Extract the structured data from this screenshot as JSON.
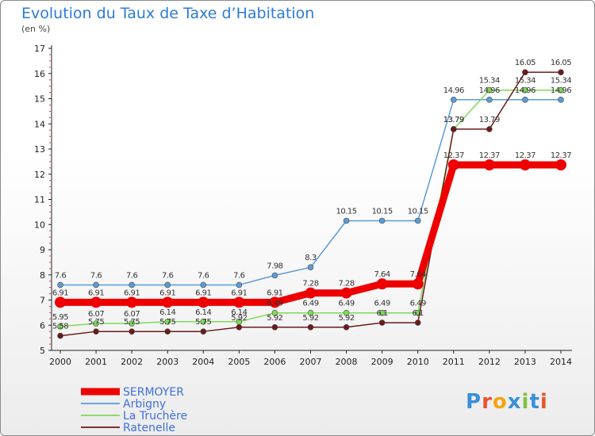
{
  "chart_data": {
    "type": "line",
    "title": "Evolution du Taux de Taxe d’Habitation",
    "unit_label": "(en %)",
    "x": [
      "2000",
      "2001",
      "2002",
      "2003",
      "2004",
      "2005",
      "2006",
      "2007",
      "2008",
      "2009",
      "2010",
      "2011",
      "2012",
      "2013",
      "2014"
    ],
    "ylim": [
      5,
      17
    ],
    "yticks": [
      5,
      6,
      7,
      8,
      9,
      10,
      11,
      12,
      13,
      14,
      15,
      16,
      17
    ],
    "grid": false,
    "legend_position": "bottom-left",
    "series": [
      {
        "name": "SERMOYER",
        "color": "#ee0000",
        "values": [
          6.91,
          6.91,
          6.91,
          6.91,
          6.91,
          6.91,
          6.91,
          7.28,
          7.28,
          7.64,
          7.64,
          12.37,
          12.37,
          12.37,
          12.37
        ]
      },
      {
        "name": "Arbigny",
        "color": "#5b9bd5",
        "values": [
          7.6,
          7.6,
          7.6,
          7.6,
          7.6,
          7.6,
          7.98,
          8.3,
          10.15,
          10.15,
          10.15,
          14.96,
          14.96,
          14.96,
          14.96
        ]
      },
      {
        "name": "La Truchère",
        "color": "#7ed957",
        "values": [
          5.95,
          6.07,
          6.07,
          6.14,
          6.14,
          6.14,
          6.49,
          6.49,
          6.49,
          6.49,
          6.49,
          13.79,
          15.34,
          15.34,
          15.34
        ]
      },
      {
        "name": "Ratenelle",
        "color": "#6b1a1a",
        "values": [
          5.58,
          5.75,
          5.75,
          5.75,
          5.75,
          5.92,
          5.92,
          5.92,
          5.92,
          6.1,
          6.1,
          13.79,
          13.79,
          16.05,
          16.05
        ]
      }
    ]
  },
  "logo": {
    "text": "Proxiti",
    "letters": [
      "P",
      "r",
      "o",
      "x",
      "i",
      "t",
      "i"
    ],
    "colors": [
      "#3b8fd8",
      "#e8552b",
      "#f2a414",
      "#3b8fd8",
      "#7dc241",
      "#3b8fd8",
      "#e8552b"
    ]
  }
}
